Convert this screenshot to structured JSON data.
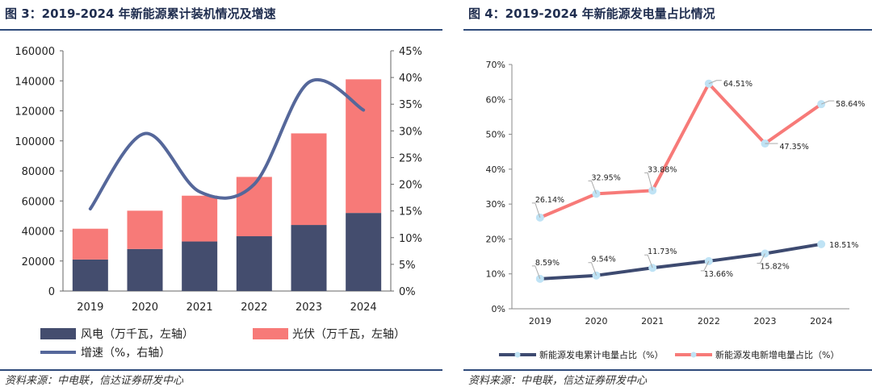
{
  "left": {
    "title": "图 3：2019-2024 年新能源累计装机情况及增速",
    "source": "资料来源：中电联，信达证券研发中心"
  },
  "right": {
    "title": "图 4：2019-2024 年新能源发电量占比情况",
    "source": "资料来源：中电联，信达证券研发中心"
  },
  "chart_data": [
    {
      "type": "bar",
      "stacked": true,
      "title": "图 3：2019-2024 年新能源累计装机情况及增速",
      "categories": [
        "2019",
        "2020",
        "2021",
        "2022",
        "2023",
        "2024"
      ],
      "series": [
        {
          "name": "风电（万千瓦，左轴）",
          "kind": "bar",
          "axis": "left",
          "color": "#444d6e",
          "values": [
            21000,
            28000,
            33000,
            36500,
            44000,
            52000
          ]
        },
        {
          "name": "光伏（万千瓦，左轴）",
          "kind": "bar",
          "axis": "left",
          "color": "#f77a78",
          "values": [
            20500,
            25500,
            30500,
            39500,
            61000,
            89000
          ]
        },
        {
          "name": "增速（%，右轴）",
          "kind": "line",
          "axis": "right",
          "color": "#55679a",
          "smooth": true,
          "values": [
            15.4,
            29.5,
            18.6,
            20.0,
            39.1,
            33.9
          ]
        }
      ],
      "y_left": {
        "min": 0,
        "max": 160000,
        "step": 20000,
        "ticks": [
          "0",
          "20000",
          "40000",
          "60000",
          "80000",
          "100000",
          "120000",
          "140000",
          "160000"
        ]
      },
      "y_right": {
        "min": 0,
        "max": 45,
        "step": 5,
        "ticks": [
          "0%",
          "5%",
          "10%",
          "15%",
          "20%",
          "25%",
          "30%",
          "35%",
          "40%",
          "45%"
        ]
      },
      "grid": false,
      "legend_position": "bottom"
    },
    {
      "type": "line",
      "title": "图 4：2019-2024 年新能源发电量占比情况",
      "categories": [
        "2019",
        "2020",
        "2021",
        "2022",
        "2023",
        "2024"
      ],
      "series": [
        {
          "name": "新能源发电累计电量占比（%）",
          "color": "#3d4a70",
          "marker_color": "#bfe3f5",
          "values": [
            8.59,
            9.54,
            11.73,
            13.66,
            15.82,
            18.51
          ],
          "labels": [
            "8.59%",
            "9.54%",
            "11.73%",
            "13.66%",
            "15.82%",
            "18.51%"
          ]
        },
        {
          "name": "新能源发电新增电量占比（%）",
          "color": "#f77a78",
          "marker_color": "#bfe3f5",
          "values": [
            26.14,
            32.95,
            33.88,
            64.51,
            47.35,
            58.64
          ],
          "labels": [
            "26.14%",
            "32.95%",
            "33.88%",
            "64.51%",
            "47.35%",
            "58.64%"
          ]
        }
      ],
      "y": {
        "min": 0,
        "max": 70,
        "step": 10,
        "ticks": [
          "0%",
          "10%",
          "20%",
          "30%",
          "40%",
          "50%",
          "60%",
          "70%"
        ]
      },
      "grid": false,
      "legend_position": "bottom"
    }
  ]
}
